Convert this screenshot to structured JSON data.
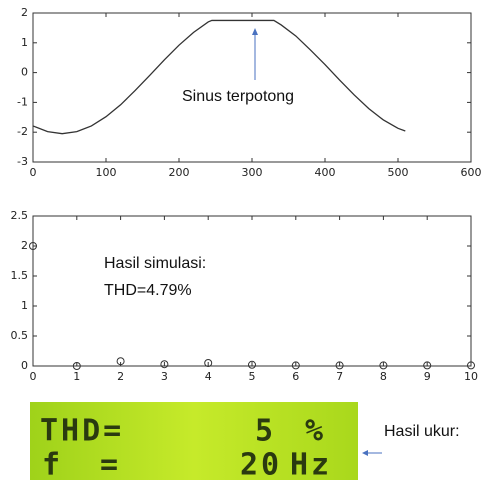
{
  "chart_data": [
    {
      "type": "line",
      "annotation": "Sinus terpotong",
      "color": "#333333",
      "x": [
        0,
        20,
        40,
        60,
        80,
        100,
        120,
        140,
        160,
        180,
        200,
        220,
        240,
        245,
        260,
        280,
        300,
        320,
        330,
        340,
        360,
        380,
        400,
        420,
        440,
        460,
        480,
        500,
        510
      ],
      "values": [
        -1.79,
        -1.98,
        -2.05,
        -1.98,
        -1.79,
        -1.48,
        -1.08,
        -0.6,
        -0.09,
        0.43,
        0.92,
        1.35,
        1.7,
        1.75,
        1.75,
        1.75,
        1.75,
        1.75,
        1.75,
        1.6,
        1.23,
        0.76,
        0.27,
        -0.25,
        -0.75,
        -1.21,
        -1.59,
        -1.87,
        -1.96
      ],
      "xlim": [
        0,
        600
      ],
      "xticks": [
        0,
        100,
        200,
        300,
        400,
        500,
        600
      ],
      "ylim": [
        -3,
        2
      ],
      "yticks": [
        -3,
        -2,
        -1,
        0,
        1,
        2
      ],
      "grid": false
    },
    {
      "type": "scatter",
      "annotations": [
        "Hasil simulasi:",
        "THD=4.79%"
      ],
      "color": "#333333",
      "x": [
        0,
        1,
        2,
        3,
        4,
        5,
        6,
        7,
        8,
        9,
        10
      ],
      "values": [
        2.0,
        0.0,
        0.08,
        0.03,
        0.05,
        0.02,
        0.01,
        0.01,
        0.01,
        0.01,
        0.01
      ],
      "xlim": [
        0,
        10
      ],
      "xticks": [
        0,
        1,
        2,
        3,
        4,
        5,
        6,
        7,
        8,
        9,
        10
      ],
      "ylim": [
        0,
        2.5
      ],
      "yticks": [
        0,
        0.5,
        1,
        1.5,
        2,
        2.5
      ],
      "grid": false
    }
  ],
  "lcd": {
    "label": "Hasil ukur:",
    "rows": [
      [
        "THD=",
        "5",
        "%"
      ],
      [
        "f",
        "=",
        "20",
        "Hz"
      ]
    ]
  }
}
